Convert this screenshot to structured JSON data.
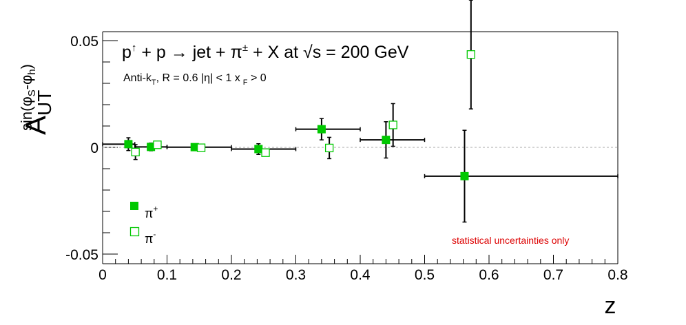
{
  "chart_data": {
    "type": "scatter",
    "header": {
      "lhs_p1": "p",
      "lhs_up": "↑",
      "lhs_rest": " + p ",
      "arrow": "→",
      "rhs_jet": " jet + ",
      "pi": "π",
      "pm": "±",
      "rhs_tail": " + X at  ",
      "sqrt": "√",
      "energy": "s = 200 GeV"
    },
    "subheader": {
      "algo": "Anti-k",
      "algo_sub": "T",
      "radius": ", R = 0.6   |η| < 1   x",
      "xf_sub": "F",
      "xf_tail": " > 0"
    },
    "ylabel": {
      "main": "A",
      "sub": "UT",
      "sup_a": "sin(φ",
      "sup_s": "S",
      "sup_b": "-φ",
      "sup_h": "h",
      "sup_c": ")"
    },
    "xlabel": "z",
    "xlim": [
      0,
      0.8
    ],
    "ylim": [
      -0.054,
      0.054
    ],
    "xticks": [
      0,
      0.1,
      0.2,
      0.3,
      0.4,
      0.5,
      0.6,
      0.7,
      0.8
    ],
    "xtick_labels": [
      "0",
      "0.1",
      "0.2",
      "0.3",
      "0.4",
      "0.5",
      "0.6",
      "0.7",
      "0.8"
    ],
    "yticks": [
      -0.05,
      0,
      0.05
    ],
    "ytick_labels": [
      "-0.05",
      "0",
      "0.05"
    ],
    "reference_line": 0,
    "note": "statistical uncertainties only",
    "colors": {
      "series": "#00c800",
      "note": "#dd0000",
      "ref_line": "#aaaaaa",
      "axes": "#000000"
    },
    "legend": {
      "placement": "bottom-left"
    },
    "series": [
      {
        "name": "π+",
        "label_base": "π",
        "label_sup": "+",
        "marker": "filled-square",
        "points": [
          {
            "x": 0.04,
            "y": 0.0015,
            "xerr": [
              0.04,
              0.01
            ],
            "yerr": 0.003
          },
          {
            "x": 0.075,
            "y": 0.0002,
            "xerr": [
              0.025,
              0.025
            ],
            "yerr": 0.0018
          },
          {
            "x": 0.143,
            "y": 0.0001,
            "xerr": [
              0.043,
              0.057
            ],
            "yerr": 0.0012
          },
          {
            "x": 0.242,
            "y": -0.0008,
            "xerr": [
              0.042,
              0.058
            ],
            "yerr": 0.0025
          },
          {
            "x": 0.34,
            "y": 0.0085,
            "xerr": [
              0.04,
              0.06
            ],
            "yerr": 0.005
          },
          {
            "x": 0.44,
            "y": 0.0035,
            "xerr": [
              0.04,
              0.06
            ],
            "yerr": 0.0085
          },
          {
            "x": 0.562,
            "y": -0.0135,
            "xerr": [
              0.062,
              0.238
            ],
            "yerr": 0.0215
          }
        ]
      },
      {
        "name": "π-",
        "label_base": "π",
        "label_sup": "-",
        "marker": "open-square",
        "points": [
          {
            "x": 0.051,
            "y": -0.0022,
            "xerr": [
              0.0,
              0.0
            ],
            "yerr": 0.0035
          },
          {
            "x": 0.085,
            "y": 0.0012,
            "xerr": [
              0.0,
              0.0
            ],
            "yerr": 0.0
          },
          {
            "x": 0.153,
            "y": -0.0002,
            "xerr": [
              0.0,
              0.0
            ],
            "yerr": 0.0
          },
          {
            "x": 0.253,
            "y": -0.0025,
            "xerr": [
              0.0,
              0.0
            ],
            "yerr": 0.0
          },
          {
            "x": 0.352,
            "y": -0.0003,
            "xerr": [
              0.0,
              0.0
            ],
            "yerr": 0.005
          },
          {
            "x": 0.451,
            "y": 0.0105,
            "xerr": [
              0.0,
              0.0
            ],
            "yerr": 0.01
          },
          {
            "x": 0.572,
            "y": 0.0435,
            "xerr": [
              0.0,
              0.0
            ],
            "yerr": 0.0255
          }
        ]
      }
    ]
  }
}
